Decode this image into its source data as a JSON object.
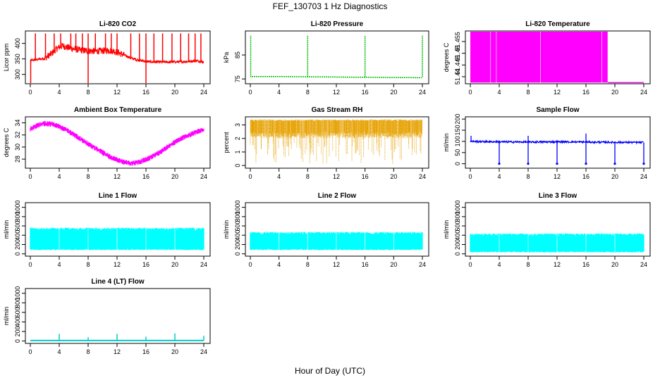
{
  "figure": {
    "title": "FEF_130703  1 Hz Diagnostics",
    "xlabel": "Hour of Day (UTC)"
  },
  "chart_data": [
    {
      "id": "co2",
      "type": "line",
      "title": "Li-820 CO2",
      "ylabel": "Licor ppm",
      "color": "#ff0000",
      "xlim": [
        0,
        24
      ],
      "ylim": [
        270,
        440
      ],
      "xticks": [
        0,
        4,
        8,
        12,
        16,
        20,
        24
      ],
      "yticks": [
        300,
        350,
        400
      ],
      "x": [
        0,
        1,
        2,
        3,
        3.5,
        4,
        4.5,
        5,
        6,
        7,
        8,
        9,
        10,
        11,
        12,
        13,
        14,
        15,
        16,
        17,
        18,
        19,
        20,
        21,
        22,
        23,
        24
      ],
      "values": [
        345,
        348,
        352,
        368,
        380,
        388,
        392,
        388,
        382,
        378,
        376,
        375,
        376,
        378,
        372,
        362,
        352,
        346,
        342,
        340,
        340,
        340,
        340,
        341,
        342,
        344,
        340
      ],
      "spikes": [
        0.7,
        2.1,
        3.3,
        4.2,
        5.6,
        6.3,
        7.2,
        8.0,
        9.0,
        10.4,
        11.2,
        12.0,
        13.9,
        15.1,
        16.0,
        17.1,
        18.3,
        19.6,
        20.8,
        21.9,
        22.8,
        23.6
      ],
      "dips": [
        0.05,
        8.0,
        16.0
      ]
    },
    {
      "id": "pressure",
      "type": "line",
      "title": "Li-820 Pressure",
      "ylabel": "kPa",
      "color": "#00bb00",
      "xlim": [
        0,
        24
      ],
      "ylim": [
        73,
        95
      ],
      "xticks": [
        0,
        4,
        8,
        12,
        16,
        20,
        24
      ],
      "yticks": [
        75,
        85
      ],
      "x": [
        0,
        0.2,
        4,
        8,
        12,
        16,
        20,
        24
      ],
      "values": [
        76.5,
        76.0,
        76.0,
        75.9,
        75.8,
        75.7,
        75.6,
        75.5
      ],
      "spikes": [
        0.05,
        8.0,
        16.0,
        24.0
      ]
    },
    {
      "id": "licor_temp",
      "type": "area",
      "title": "Li-820 Temperature",
      "ylabel": "degrees C",
      "color": "#ff00ff",
      "xlim": [
        0,
        24
      ],
      "ylim": [
        51.437,
        51.4595
      ],
      "xticks": [
        0,
        4,
        8,
        12,
        16,
        20,
        24
      ],
      "yticks": [
        51.44,
        51.445,
        51.45,
        51.455
      ],
      "fill_range": [
        0,
        19
      ],
      "low": 51.4375,
      "high": 51.4595,
      "tail": 51.4375,
      "gaps": [
        2.8,
        3.6,
        9.7,
        18.2
      ]
    },
    {
      "id": "ambient_temp",
      "type": "line",
      "title": "Ambient Box Temperature",
      "ylabel": "degrees C",
      "color": "#ff00ff",
      "xlim": [
        0,
        24
      ],
      "ylim": [
        26.5,
        35
      ],
      "xticks": [
        0,
        4,
        8,
        12,
        16,
        20,
        24
      ],
      "yticks": [
        28,
        30,
        32,
        34
      ],
      "x": [
        0,
        1,
        2,
        3,
        4,
        5,
        6,
        7,
        8,
        9,
        10,
        11,
        12,
        13,
        14,
        15,
        16,
        17,
        18,
        19,
        20,
        21,
        22,
        23,
        24
      ],
      "values": [
        33.0,
        33.6,
        33.9,
        33.8,
        33.4,
        32.8,
        32.1,
        31.3,
        30.5,
        29.8,
        29.1,
        28.4,
        27.9,
        27.5,
        27.3,
        27.5,
        27.9,
        28.5,
        29.2,
        30.0,
        30.8,
        31.5,
        32.0,
        32.5,
        32.9
      ],
      "noise": 0.45
    },
    {
      "id": "rh",
      "type": "scatter",
      "title": "Gas Stream RH",
      "ylabel": "percent",
      "color": "#e6a100",
      "xlim": [
        0,
        24
      ],
      "ylim": [
        -0.2,
        3.6
      ],
      "xticks": [
        0,
        4,
        8,
        12,
        16,
        20,
        24
      ],
      "yticks": [
        0,
        1,
        2,
        3
      ],
      "band_low": 2.5,
      "band_high": 3.4,
      "min": 0.1
    },
    {
      "id": "sample_flow",
      "type": "line",
      "title": "Sample Flow",
      "ylabel": "ml/min",
      "color": "#0000ff",
      "xlim": [
        0,
        24
      ],
      "ylim": [
        -20,
        210
      ],
      "xticks": [
        0,
        4,
        8,
        12,
        16,
        20,
        24
      ],
      "yticks": [
        0,
        50,
        100,
        150,
        200
      ],
      "x": [
        0,
        4,
        8,
        12,
        16,
        20,
        24
      ],
      "values": [
        100,
        98,
        97,
        98,
        97,
        96,
        95
      ],
      "dips": [
        4,
        8,
        12,
        16,
        20,
        24
      ],
      "spikes": [
        0.1,
        8.0,
        16.0
      ]
    },
    {
      "id": "line1",
      "type": "area",
      "title": "Line 1 Flow",
      "ylabel": "ml/min",
      "color": "#00ffff",
      "xlim": [
        0,
        24
      ],
      "ylim": [
        -50,
        1100
      ],
      "xticks": [
        0,
        4,
        8,
        12,
        16,
        20,
        24
      ],
      "yticks": [
        0,
        200,
        400,
        600,
        800,
        1000
      ],
      "low": 80,
      "high": 560,
      "fill_range": [
        0,
        24
      ],
      "gaps": [
        4,
        8,
        12,
        16,
        20
      ]
    },
    {
      "id": "line2",
      "type": "area",
      "title": "Line 2 Flow",
      "ylabel": "ml/min",
      "color": "#00ffff",
      "xlim": [
        0,
        24
      ],
      "ylim": [
        -50,
        1100
      ],
      "xticks": [
        0,
        4,
        8,
        12,
        16,
        20,
        24
      ],
      "yticks": [
        0,
        200,
        400,
        600,
        800,
        1000
      ],
      "low": 80,
      "high": 470,
      "fill_range": [
        0,
        24
      ],
      "gaps": [
        4,
        8,
        12,
        16,
        20
      ]
    },
    {
      "id": "line3",
      "type": "area",
      "title": "Line 3 Flow",
      "ylabel": "ml/min",
      "color": "#00ffff",
      "xlim": [
        0,
        24
      ],
      "ylim": [
        -50,
        1100
      ],
      "xticks": [
        0,
        4,
        8,
        12,
        16,
        20,
        24
      ],
      "yticks": [
        0,
        200,
        400,
        600,
        800,
        1000
      ],
      "low": 30,
      "high": 440,
      "fill_range": [
        0,
        24
      ],
      "gaps": [
        4,
        8,
        12,
        16,
        20
      ]
    },
    {
      "id": "line4",
      "type": "line",
      "title": "Line 4 (LT) Flow",
      "ylabel": "ml/min",
      "color": "#00cccc",
      "xlim": [
        0,
        24
      ],
      "ylim": [
        -50,
        1100
      ],
      "xticks": [
        0,
        4,
        8,
        12,
        16,
        20,
        24
      ],
      "yticks": [
        0,
        200,
        400,
        600,
        800,
        1000
      ],
      "x": [
        0,
        24
      ],
      "values": [
        10,
        10
      ],
      "spikes": [
        4,
        8,
        12,
        16,
        20,
        24
      ],
      "spike_heights": [
        150,
        80,
        150,
        90,
        160,
        110
      ]
    }
  ]
}
